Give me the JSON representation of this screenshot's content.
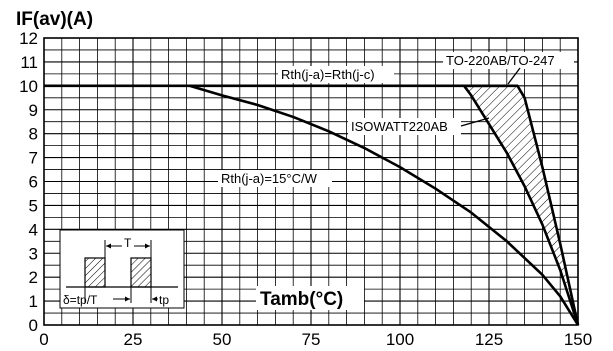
{
  "chart_data": {
    "type": "line",
    "title": "",
    "ylabel": "IF(av)(A)",
    "xlabel": "Tamb(°C)",
    "xlim": [
      0,
      150
    ],
    "ylim": [
      0,
      12
    ],
    "x_ticks": [
      0,
      25,
      50,
      75,
      100,
      125,
      150
    ],
    "y_ticks": [
      0,
      1,
      2,
      3,
      4,
      5,
      6,
      7,
      8,
      9,
      10,
      11,
      12
    ],
    "x_minor_step": 5,
    "y_minor_step": 0.5,
    "grid": true,
    "series": [
      {
        "name": "Rth(j-a)=Rth(j-c)",
        "x": [
          0,
          41,
          118,
          130
        ],
        "y": [
          10,
          10,
          10,
          10
        ]
      },
      {
        "name": "TO-220AB/TO-247",
        "x": [
          118,
          133,
          135,
          140,
          145,
          150
        ],
        "y": [
          10,
          10,
          9.5,
          6.6,
          3.4,
          0
        ]
      },
      {
        "name": "ISOWATT220AB",
        "x": [
          118,
          120,
          125,
          130,
          135,
          140,
          145,
          150
        ],
        "y": [
          10,
          9.6,
          8.4,
          7.2,
          5.8,
          4.2,
          2.3,
          0
        ]
      },
      {
        "name": "Rth(j-a)=15°C/W",
        "x": [
          41,
          50,
          60,
          70,
          80,
          90,
          100,
          110,
          120,
          130,
          140,
          145,
          150
        ],
        "y": [
          10,
          9.6,
          9.2,
          8.7,
          8.1,
          7.4,
          6.6,
          5.7,
          4.7,
          3.5,
          2.1,
          1.2,
          0
        ]
      }
    ],
    "annotations": [
      {
        "text": "Rth(j-a)=Rth(j-c)"
      },
      {
        "text": "TO-220AB/TO-247"
      },
      {
        "text": "ISOWATT220AB"
      },
      {
        "text": "Rth(j-a)=15°C/W"
      }
    ],
    "inset": {
      "period_label": "T",
      "duty_label": "δ=tp/T",
      "pulse_label": "tp"
    }
  }
}
